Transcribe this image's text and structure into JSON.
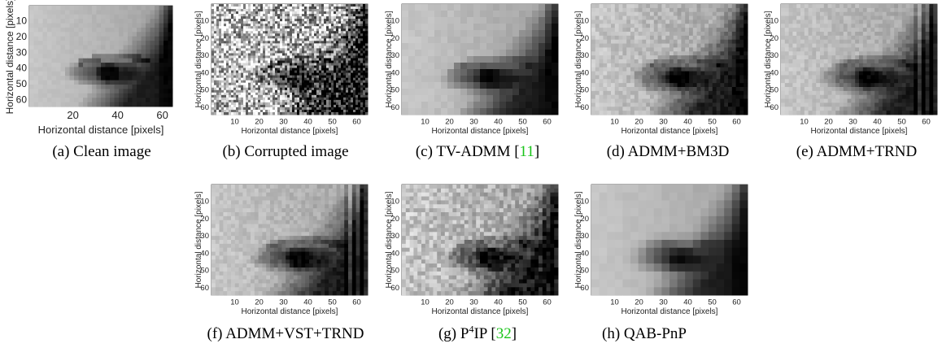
{
  "figure": {
    "panels": [
      {
        "id": "a",
        "caption": {
          "label": "(a)",
          "text": "Clean image",
          "ref": "",
          "sup": ""
        },
        "xlabel": "Horizontal distance [pixels]",
        "ylabel": "Horizontal distance [pixels]",
        "xticks": [
          "20",
          "40",
          "60"
        ],
        "yticks": [
          "10",
          "20",
          "30",
          "40",
          "50",
          "60"
        ],
        "image": "clean-eye"
      },
      {
        "id": "b",
        "caption": {
          "label": "(b)",
          "text": "Corrupted image",
          "ref": "",
          "sup": ""
        },
        "xlabel": "Horizontal distance [pixels]",
        "ylabel": "Horizontal distance [pixels]",
        "xticks": [
          "10",
          "20",
          "30",
          "40",
          "50",
          "60"
        ],
        "yticks": [
          "10",
          "20",
          "30",
          "40",
          "50",
          "60"
        ],
        "image": "noisy-eye"
      },
      {
        "id": "c",
        "caption": {
          "label": "(c)",
          "text": "TV-ADMM [",
          "ref": "11",
          "sup": "",
          "tail": "]"
        },
        "xlabel": "Horizontal distance [pixels]",
        "ylabel": "Horizontal distance [pixels]",
        "xticks": [
          "10",
          "20",
          "30",
          "40",
          "50",
          "60"
        ],
        "yticks": [
          "10",
          "20",
          "30",
          "40",
          "50",
          "60"
        ],
        "image": "tv-eye"
      },
      {
        "id": "d",
        "caption": {
          "label": "(d)",
          "text": "ADMM+BM3D",
          "ref": "",
          "sup": ""
        },
        "xlabel": "Horizontal distance [pixels]",
        "ylabel": "Horizontal distance [pixels]",
        "xticks": [
          "10",
          "20",
          "30",
          "40",
          "50",
          "60"
        ],
        "yticks": [
          "10",
          "20",
          "30",
          "40",
          "50",
          "60"
        ],
        "image": "bm3d-eye"
      },
      {
        "id": "e",
        "caption": {
          "label": "(e)",
          "text": "ADMM+TRND",
          "ref": "",
          "sup": ""
        },
        "xlabel": "Horizontal distance [pixels]",
        "ylabel": "Horizontal distance [pixels]",
        "xticks": [
          "10",
          "20",
          "30",
          "40",
          "50",
          "60"
        ],
        "yticks": [
          "10",
          "20",
          "30",
          "40",
          "50",
          "60"
        ],
        "image": "trnd-eye"
      },
      {
        "id": "f",
        "caption": {
          "label": "(f)",
          "text": "ADMM+VST+TRND",
          "ref": "",
          "sup": ""
        },
        "xlabel": "Horizontal distance [pixels]",
        "ylabel": "Horizontal distance [pixels]",
        "xticks": [
          "10",
          "20",
          "30",
          "40",
          "50",
          "60"
        ],
        "yticks": [
          "10",
          "20",
          "30",
          "40",
          "50",
          "60"
        ],
        "image": "vst-trnd-eye"
      },
      {
        "id": "g",
        "caption": {
          "label": "(g)",
          "text": "P",
          "sup": "4",
          "after_sup": "IP [",
          "ref": "32",
          "tail": "]"
        },
        "xlabel": "Horizontal distance [pixels]",
        "ylabel": "Horizontal distance [pixels]",
        "xticks": [
          "10",
          "20",
          "30",
          "40",
          "50",
          "60"
        ],
        "yticks": [
          "10",
          "20",
          "30",
          "40",
          "50",
          "60"
        ],
        "image": "p4ip-eye"
      },
      {
        "id": "h",
        "caption": {
          "label": "(h)",
          "text": "QAB-PnP",
          "ref": "",
          "sup": ""
        },
        "xlabel": "Horizontal distance [pixels]",
        "ylabel": "Horizontal distance [pixels]",
        "xticks": [
          "10",
          "20",
          "30",
          "40",
          "50",
          "60"
        ],
        "yticks": [
          "10",
          "20",
          "30",
          "40",
          "50",
          "60"
        ],
        "image": "qab-pnp-eye"
      }
    ]
  }
}
